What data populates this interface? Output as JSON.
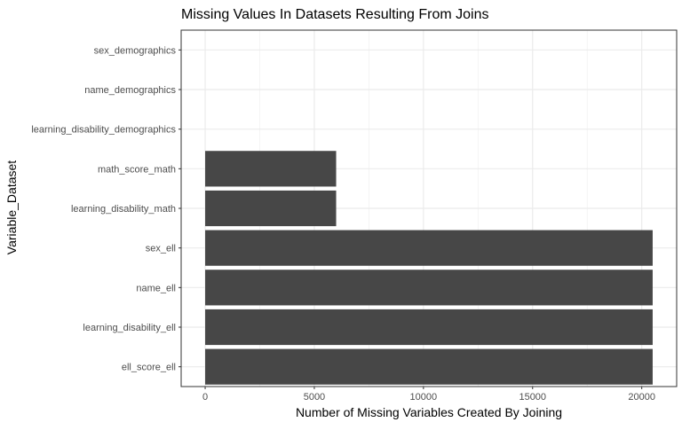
{
  "chart_data": {
    "type": "bar",
    "orientation": "horizontal",
    "title": "Missing Values In Datasets Resulting From Joins",
    "xlabel": "Number of Missing Variables Created By Joining",
    "ylabel": "Variable_Dataset",
    "categories": [
      "sex_demographics",
      "name_demographics",
      "learning_disability_demographics",
      "math_score_math",
      "learning_disability_math",
      "sex_ell",
      "name_ell",
      "learning_disability_ell",
      "ell_score_ell"
    ],
    "values": [
      0,
      0,
      0,
      6000,
      6000,
      20500,
      20500,
      20500,
      20500
    ],
    "xlim": [
      -1100,
      21600
    ],
    "xticks": [
      0,
      5000,
      10000,
      15000,
      20000
    ],
    "bar_color": "#474747",
    "grid": true,
    "legend": "none"
  }
}
